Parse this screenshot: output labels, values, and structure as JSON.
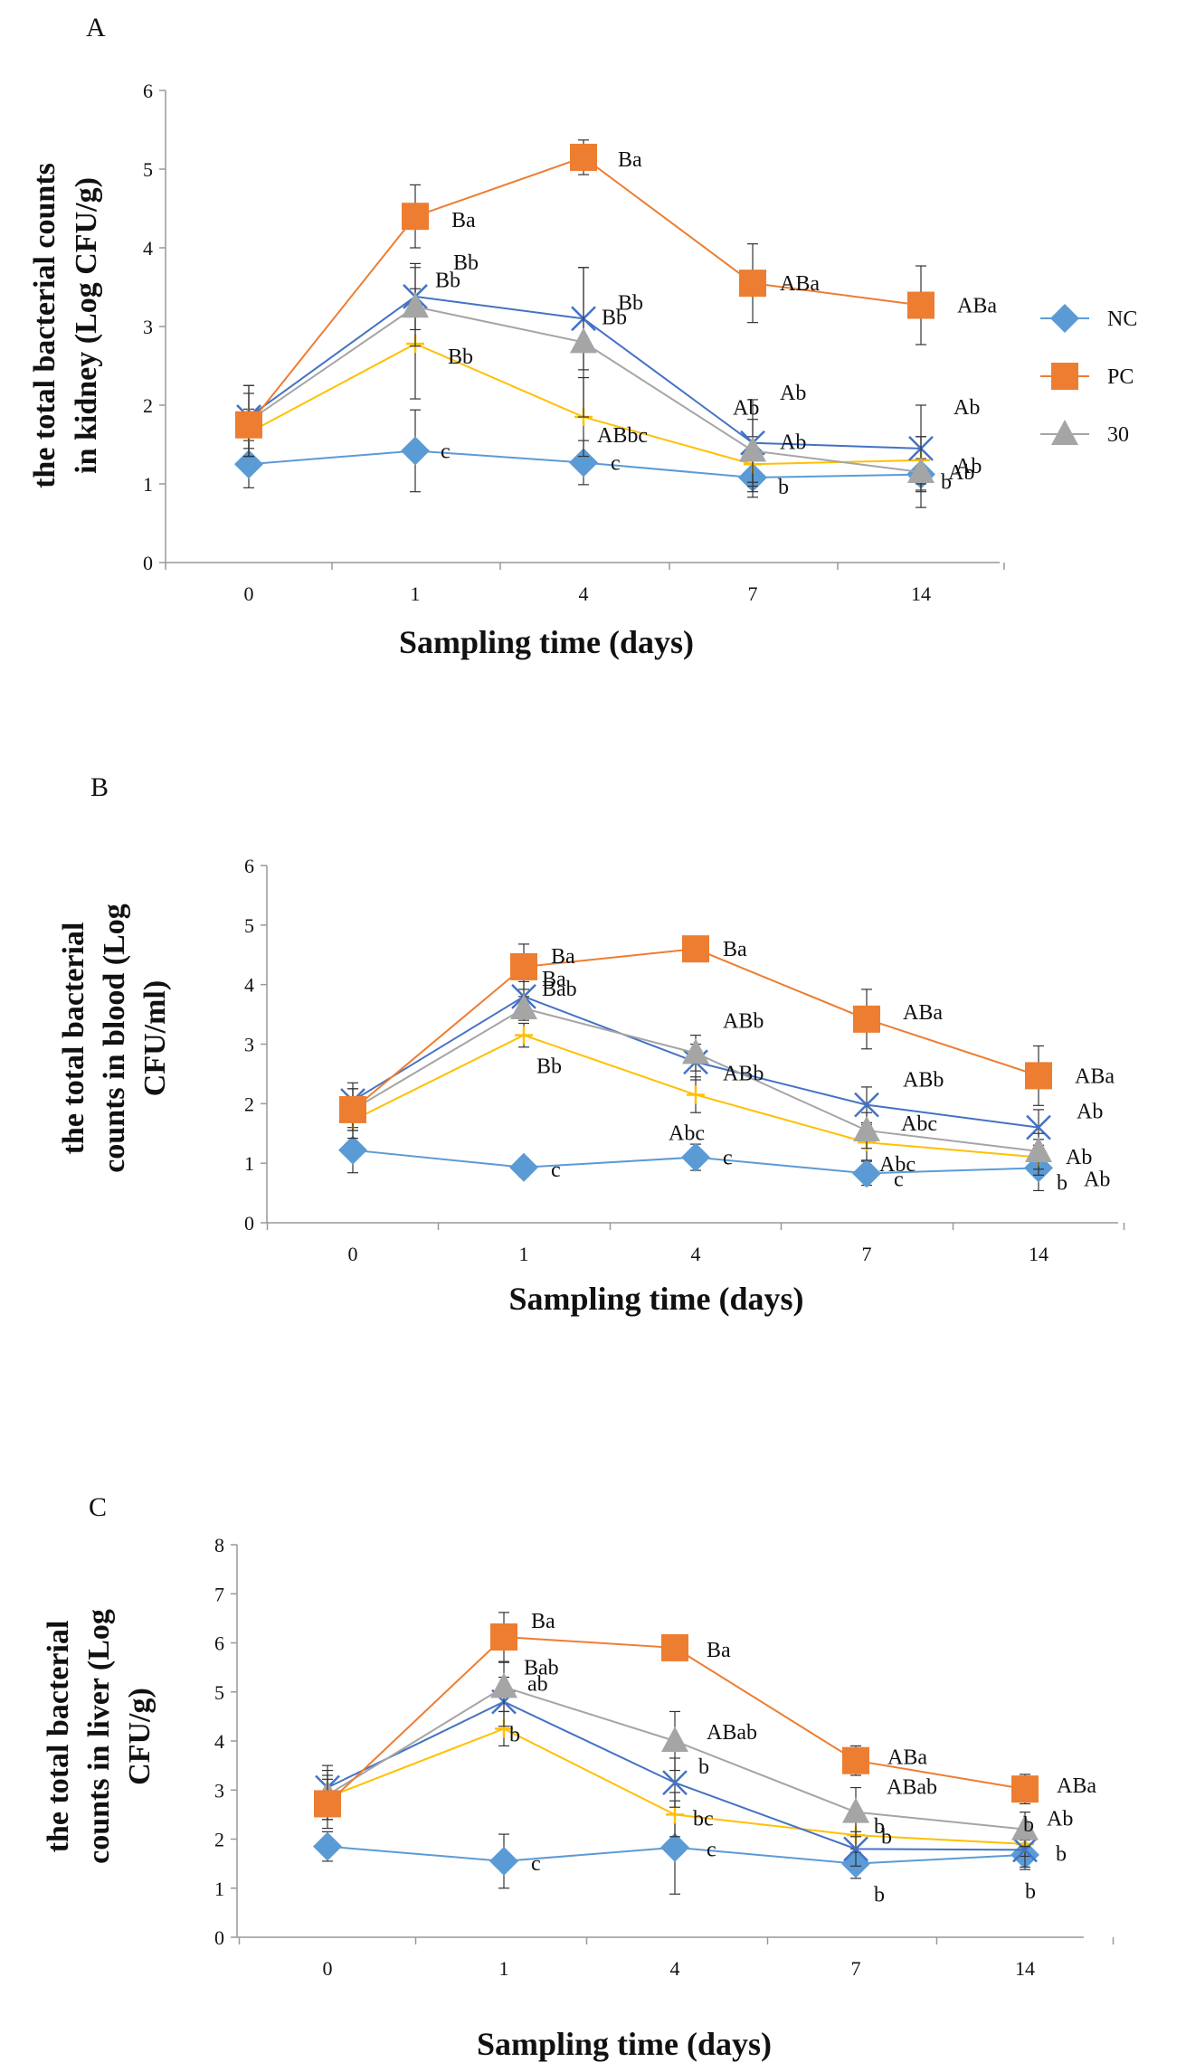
{
  "chart_data": [
    {
      "id": "A",
      "type": "line",
      "title": "A",
      "ylabel_lines": [
        "the total bacterial counts",
        "in kidney (Log CFU/g)"
      ],
      "xlabel": "Sampling time (days)",
      "categories": [
        "0",
        "1",
        "4",
        "7",
        "14"
      ],
      "ylim": [
        0,
        6
      ],
      "yticks": [
        0,
        1,
        2,
        3,
        4,
        5,
        6
      ],
      "series": [
        {
          "name": "NC",
          "color": "#5b9bd5",
          "marker": "diamond",
          "values": [
            1.25,
            1.42,
            1.27,
            1.08,
            1.12
          ],
          "errors": [
            0.3,
            0.52,
            0.28,
            0.25,
            0.2
          ],
          "labels": [
            "",
            "c",
            "c",
            "b",
            "b"
          ]
        },
        {
          "name": "PC",
          "color": "#ed7d31",
          "marker": "square",
          "values": [
            1.75,
            4.4,
            5.15,
            3.55,
            3.27
          ],
          "errors": [
            0.4,
            0.4,
            0.22,
            0.5,
            0.5
          ],
          "labels": [
            "",
            "Ba",
            "Ba",
            "ABa",
            "ABa"
          ]
        },
        {
          "name": "30",
          "color": "#a5a5a5",
          "marker": "triangle",
          "values": [
            1.8,
            3.25,
            2.8,
            1.42,
            1.15
          ],
          "errors": [
            0.45,
            0.5,
            0.95,
            0.4,
            0.45
          ],
          "labels": [
            "",
            "Bb",
            "Bb",
            "Ab",
            "Ab"
          ]
        },
        {
          "name": "",
          "color": "#ffc000",
          "marker": "plus",
          "values": [
            1.65,
            2.78,
            1.85,
            1.25,
            1.3
          ],
          "errors": [
            0.3,
            0.7,
            0.5,
            0.35,
            0.3
          ],
          "labels": [
            "",
            "Bb",
            "ABbc",
            "Ab",
            "Ab"
          ]
        },
        {
          "name": "",
          "color": "#4472c4",
          "marker": "x",
          "values": [
            1.85,
            3.38,
            3.1,
            1.52,
            1.45
          ],
          "errors": [
            0.4,
            0.42,
            0.65,
            0.55,
            0.55
          ],
          "labels": [
            "",
            "Bb",
            "Bb",
            "Ab",
            "Ab"
          ]
        }
      ],
      "legend": [
        "NC",
        "PC",
        "30"
      ],
      "legend_position": "right"
    },
    {
      "id": "B",
      "type": "line",
      "title": "B",
      "ylabel_lines": [
        "the total bacterial",
        "counts in blood (Log",
        "CFU/ml)"
      ],
      "xlabel": "Sampling time (days)",
      "categories": [
        "0",
        "1",
        "4",
        "7",
        "14"
      ],
      "ylim": [
        0,
        6
      ],
      "yticks": [
        0,
        1,
        2,
        3,
        4,
        5,
        6
      ],
      "series": [
        {
          "name": "NC",
          "color": "#5b9bd5",
          "marker": "diamond",
          "values": [
            1.22,
            0.93,
            1.1,
            0.83,
            0.92
          ],
          "errors": [
            0.38,
            0.15,
            0.22,
            0.2,
            0.38
          ],
          "labels": [
            "",
            "c",
            "c",
            "c",
            "b"
          ]
        },
        {
          "name": "PC",
          "color": "#ed7d31",
          "marker": "square",
          "values": [
            1.9,
            4.3,
            4.6,
            3.42,
            2.47
          ],
          "errors": [
            0.35,
            0.38,
            0.1,
            0.5,
            0.5
          ],
          "labels": [
            "",
            "Ba",
            "Ba",
            "ABa",
            "ABa"
          ]
        },
        {
          "name": "30",
          "color": "#a5a5a5",
          "marker": "triangle",
          "values": [
            1.9,
            3.6,
            2.85,
            1.55,
            1.2
          ],
          "errors": [
            0.35,
            0.2,
            0.3,
            0.3,
            0.3
          ],
          "labels": [
            "",
            "Bab",
            "ABb",
            "Abc",
            "Ab"
          ]
        },
        {
          "name": "",
          "color": "#ffc000",
          "marker": "plus",
          "values": [
            1.72,
            3.15,
            2.15,
            1.35,
            1.1
          ],
          "errors": [
            0.3,
            0.2,
            0.3,
            0.3,
            0.3
          ],
          "labels": [
            "",
            "Bb",
            "Abc",
            "Abc",
            "Ab"
          ]
        },
        {
          "name": "",
          "color": "#4472c4",
          "marker": "x",
          "values": [
            2.05,
            3.8,
            2.7,
            1.98,
            1.6
          ],
          "errors": [
            0.3,
            0.25,
            0.3,
            0.3,
            0.3
          ],
          "labels": [
            "",
            "Ba",
            "ABb",
            "ABb",
            "Ab"
          ]
        }
      ]
    },
    {
      "id": "C",
      "type": "line",
      "title": "C",
      "ylabel_lines": [
        "the total bacterial",
        "counts in liver (Log",
        "CFU/g)"
      ],
      "xlabel": "Sampling time (days)",
      "categories": [
        "0",
        "1",
        "4",
        "7",
        "14"
      ],
      "ylim": [
        0,
        8
      ],
      "yticks": [
        0,
        1,
        2,
        3,
        4,
        5,
        6,
        7,
        8
      ],
      "series": [
        {
          "name": "NC",
          "color": "#5b9bd5",
          "marker": "diamond",
          "values": [
            1.85,
            1.55,
            1.83,
            1.5,
            1.68
          ],
          "errors": [
            0.3,
            0.55,
            0.95,
            0.3,
            0.3
          ],
          "labels": [
            "",
            "c",
            "c",
            "b",
            "b"
          ]
        },
        {
          "name": "PC",
          "color": "#ed7d31",
          "marker": "square",
          "values": [
            2.72,
            6.12,
            5.9,
            3.6,
            3.02
          ],
          "errors": [
            0.5,
            0.5,
            0.15,
            0.3,
            0.3
          ],
          "labels": [
            "",
            "Ba",
            "Ba",
            "ABa",
            "ABa"
          ]
        },
        {
          "name": "30",
          "color": "#a5a5a5",
          "marker": "triangle",
          "values": [
            2.9,
            5.1,
            4.0,
            2.55,
            2.2
          ],
          "errors": [
            0.5,
            0.5,
            0.6,
            0.5,
            0.35
          ],
          "labels": [
            "",
            "Bab",
            "ABab",
            "ABab",
            "Ab"
          ]
        },
        {
          "name": "",
          "color": "#ffc000",
          "marker": "plus",
          "values": [
            2.85,
            4.25,
            2.5,
            2.08,
            1.9
          ],
          "errors": [
            0.45,
            0.35,
            0.45,
            0.35,
            0.25
          ],
          "labels": [
            "",
            "b",
            "bc",
            "b",
            "b"
          ]
        },
        {
          "name": "",
          "color": "#4472c4",
          "marker": "x",
          "values": [
            3.05,
            4.8,
            3.15,
            1.8,
            1.78
          ],
          "errors": [
            0.45,
            0.5,
            0.5,
            0.35,
            0.35
          ],
          "labels": [
            "",
            "ab",
            "b",
            "b",
            "b"
          ]
        }
      ]
    }
  ]
}
